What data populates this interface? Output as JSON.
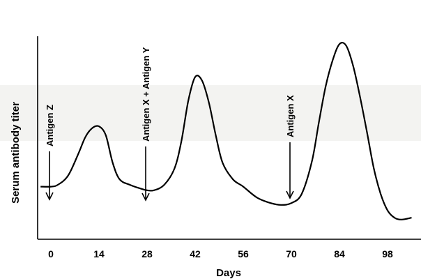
{
  "chart_data": {
    "type": "line",
    "title": "",
    "xlabel": "Days",
    "ylabel": "Serum antibody titer",
    "xlim": [
      0,
      105
    ],
    "ylim": [
      0,
      1
    ],
    "xticks": [
      0,
      14,
      28,
      42,
      56,
      70,
      84,
      98
    ],
    "grid": false,
    "series": [
      {
        "x": [
          -3,
          0,
          2,
          5,
          8,
          10,
          12,
          14,
          16,
          18,
          20,
          23,
          26,
          28,
          30,
          33,
          36,
          38,
          40,
          42,
          44,
          46,
          48,
          50,
          53,
          56,
          60,
          64,
          67,
          70,
          73,
          76,
          78,
          80,
          82,
          84,
          86,
          88,
          90,
          92,
          94,
          96,
          98,
          100,
          102,
          105
        ],
        "y": [
          0.2,
          0.2,
          0.21,
          0.26,
          0.38,
          0.47,
          0.52,
          0.53,
          0.48,
          0.33,
          0.24,
          0.21,
          0.19,
          0.18,
          0.18,
          0.21,
          0.3,
          0.45,
          0.67,
          0.8,
          0.78,
          0.66,
          0.48,
          0.33,
          0.24,
          0.2,
          0.14,
          0.11,
          0.1,
          0.11,
          0.16,
          0.34,
          0.55,
          0.75,
          0.89,
          0.98,
          0.97,
          0.86,
          0.69,
          0.5,
          0.3,
          0.16,
          0.07,
          0.03,
          0.02,
          0.03
        ]
      }
    ],
    "annotations": [
      {
        "text": "Antigen Z",
        "x": 0
      },
      {
        "text": "Antigen X + Antigen Y",
        "x": 28
      },
      {
        "text": "Antigen X",
        "x": 70
      }
    ]
  }
}
